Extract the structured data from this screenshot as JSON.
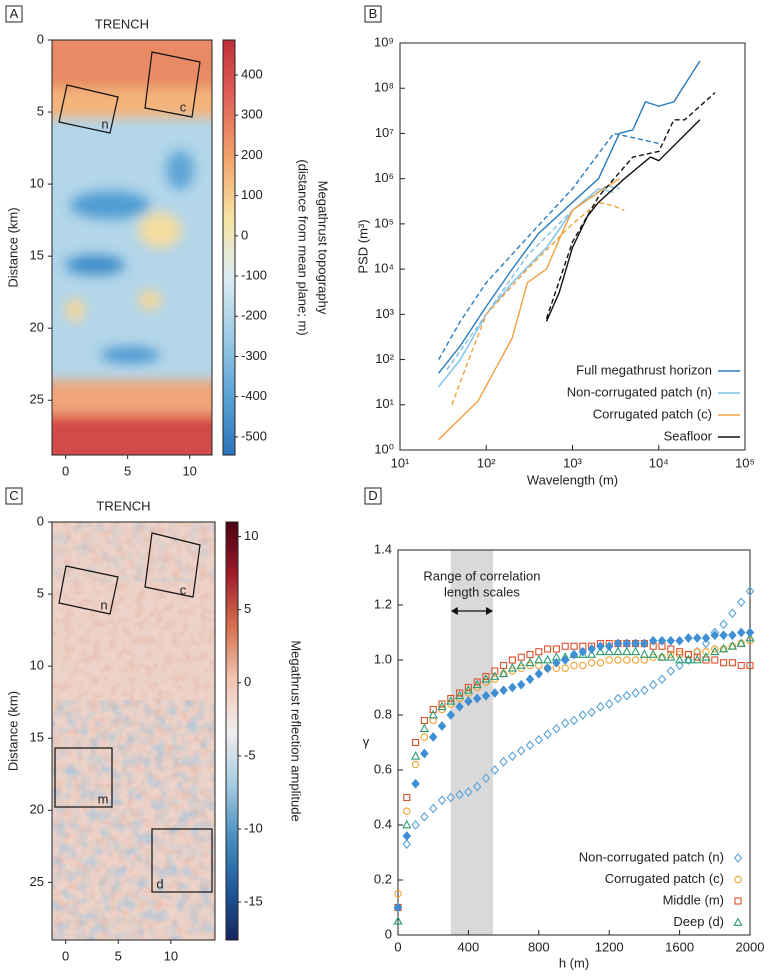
{
  "panel_labels": [
    "A",
    "B",
    "C",
    "D"
  ],
  "chart_data": [
    {
      "type": "heatmap",
      "title": "TRENCH",
      "y_label": "Distance (km)",
      "ylim": [
        0,
        28.8
      ],
      "yticks": [
        0,
        5,
        10,
        15,
        20,
        25
      ],
      "xlim": [
        -1.1,
        11.8
      ],
      "xticks": [
        0,
        5,
        10
      ],
      "colorbar_label": [
        "Megathrust topography",
        "(distance from mean plane; m)"
      ],
      "clim": [
        -545,
        487
      ],
      "cticks": [
        400,
        300,
        200,
        100,
        0,
        -100,
        -200,
        -300,
        -400,
        -500
      ],
      "colormap": [
        "#c0303a",
        "#e2635a",
        "#f2a46a",
        "#f6e3a4",
        "#dcecf2",
        "#9dcbe6",
        "#5aa3d6",
        "#2a74bb"
      ],
      "box_labels": [
        "n",
        "c"
      ]
    },
    {
      "type": "line",
      "log_x": true,
      "log_y": true,
      "x_label": "Wavelength  (m)",
      "y_label": "PSD (m³)",
      "xlim": [
        10,
        100000
      ],
      "ylim": [
        1,
        1000000000
      ],
      "xticks": [
        {
          "value": 10,
          "label": "10¹"
        },
        {
          "value": 100,
          "label": "10²"
        },
        {
          "value": 1000,
          "label": "10³"
        },
        {
          "value": 10000,
          "label": "10⁴"
        },
        {
          "value": 100000,
          "label": "10⁵"
        }
      ],
      "yticks": [
        {
          "value": 1,
          "label": "10⁰"
        },
        {
          "value": 10,
          "label": "10¹"
        },
        {
          "value": 100,
          "label": "10²"
        },
        {
          "value": 1000,
          "label": "10³"
        },
        {
          "value": 10000,
          "label": "10⁴"
        },
        {
          "value": 100000,
          "label": "10⁵"
        },
        {
          "value": 1000000,
          "label": "10⁶"
        },
        {
          "value": 10000000,
          "label": "10⁷"
        },
        {
          "value": 100000000,
          "label": "10⁸"
        },
        {
          "value": 1000000000,
          "label": "10⁹"
        }
      ],
      "series": [
        {
          "name": "Full megathrust horizon",
          "color": "#2a7cc2",
          "x": [
            28,
            50,
            100,
            200,
            400,
            1000,
            2000,
            3500,
            5000,
            7000,
            10000,
            15000,
            30000
          ],
          "values": [
            50,
            200,
            1500,
            10000,
            60000,
            300000,
            1000000,
            10000000,
            12000000,
            50000000,
            40000000,
            50000000,
            400000000
          ],
          "dashed": {
            "x": [
              28,
              50,
              100,
              300,
              1000,
              3000,
              10000
            ],
            "values": [
              100,
              700,
              5000,
              50000,
              600000,
              10000000,
              6000000
            ]
          }
        },
        {
          "name": "Non-corrugated patch (n)",
          "color": "#7cc0e8",
          "x": [
            28,
            50,
            100,
            200,
            500,
            1000,
            2000,
            3000
          ],
          "values": [
            25,
            100,
            1000,
            5000,
            30000,
            200000,
            600000,
            500000
          ],
          "dashed": {
            "x": [
              35,
              100,
              300,
              1000,
              2500,
              3500
            ],
            "values": [
              60,
              1000,
              20000,
              200000,
              700000,
              600000
            ]
          }
        },
        {
          "name": "Corrugated patch (c)",
          "color": "#f0a040",
          "x": [
            28,
            50,
            80,
            120,
            200,
            300,
            500,
            800,
            1000,
            2000,
            3500
          ],
          "values": [
            1.7,
            5,
            12,
            50,
            300,
            5000,
            10000,
            80000,
            200000,
            500000,
            1000000
          ],
          "dashed": {
            "x": [
              40,
              60,
              100,
              300,
              1000,
              2000,
              3000,
              4000
            ],
            "values": [
              10,
              80,
              1000,
              10000,
              100000,
              300000,
              250000,
              200000
            ]
          }
        },
        {
          "name": "Seafloor",
          "color": "#111111",
          "x": [
            500,
            700,
            1000,
            1500,
            2000,
            4000,
            8000,
            10000,
            30000
          ],
          "values": [
            700,
            3000,
            30000,
            150000,
            300000,
            1000000,
            3000000,
            2500000,
            20000000
          ],
          "dashed": {
            "x": [
              500,
              1000,
              2000,
              5000,
              10000,
              15000,
              20000,
              45000
            ],
            "values": [
              800,
              40000,
              400000,
              3000000,
              4000000,
              20000000,
              20000000,
              80000000
            ]
          }
        }
      ]
    },
    {
      "type": "heatmap",
      "title": "TRENCH",
      "y_label": "Distance (km)",
      "ylim": [
        0,
        29
      ],
      "yticks": [
        0,
        5,
        10,
        15,
        20,
        25
      ],
      "xlim": [
        -1.3,
        14.2
      ],
      "xticks": [
        0,
        5,
        10
      ],
      "colorbar_label": [
        "Megathrust reflection amplitude"
      ],
      "clim": [
        -17.6,
        11
      ],
      "cticks": [
        10,
        5,
        0,
        -5,
        -10,
        -15
      ],
      "colormap": [
        "#4a0010",
        "#a01c2c",
        "#d8704e",
        "#f0c4b0",
        "#f2eeee",
        "#a8cce0",
        "#4b92c2",
        "#1f5a9c",
        "#1a2460"
      ],
      "box_labels": [
        "n",
        "c",
        "m",
        "d"
      ]
    },
    {
      "type": "scatter",
      "x_label": "h (m)",
      "y_label": "γ",
      "xlim": [
        0,
        2000
      ],
      "ylim": [
        0,
        1.4
      ],
      "xticks": [
        0,
        400,
        800,
        1200,
        1600,
        2000
      ],
      "yticks": [
        0,
        0.2,
        0.4,
        0.6,
        0.8,
        {
          "value": 1,
          "label": "1.0"
        },
        1.2,
        1.4
      ],
      "band": [
        300,
        540
      ],
      "annotation": [
        "Range of correlation",
        "length scales"
      ],
      "x": [
        0,
        50,
        100,
        150,
        200,
        250,
        300,
        350,
        400,
        450,
        500,
        550,
        600,
        650,
        700,
        750,
        800,
        850,
        900,
        950,
        1000,
        1050,
        1100,
        1150,
        1200,
        1250,
        1300,
        1350,
        1400,
        1450,
        1500,
        1550,
        1600,
        1650,
        1700,
        1750,
        1800,
        1850,
        1900,
        1950,
        2000
      ],
      "series": [
        {
          "name": "Non-corrugated patch (n)",
          "color": "#5ba3d9",
          "marker": "diamond",
          "values": [
            0.1,
            0.33,
            0.4,
            0.43,
            0.46,
            0.49,
            0.5,
            0.51,
            0.52,
            0.54,
            0.57,
            0.6,
            0.63,
            0.65,
            0.67,
            0.69,
            0.71,
            0.73,
            0.75,
            0.77,
            0.78,
            0.8,
            0.81,
            0.83,
            0.84,
            0.86,
            0.87,
            0.88,
            0.89,
            0.91,
            0.93,
            0.96,
            0.98,
            1.0,
            1.03,
            1.06,
            1.1,
            1.13,
            1.17,
            1.21,
            1.25
          ]
        },
        {
          "name": "Corrugated patch (c)",
          "color": "#f0a030",
          "marker": "circle",
          "values": [
            0.15,
            0.45,
            0.62,
            0.72,
            0.78,
            0.82,
            0.84,
            0.86,
            0.88,
            0.9,
            0.92,
            0.93,
            0.95,
            0.96,
            0.97,
            0.98,
            0.98,
            0.97,
            0.97,
            0.97,
            0.98,
            0.98,
            0.99,
            0.99,
            1.0,
            1.0,
            1.0,
            1.0,
            1.0,
            1.01,
            1.01,
            1.02,
            1.02,
            1.02,
            1.03,
            1.03,
            1.04,
            1.04,
            1.05,
            1.06,
            1.07
          ]
        },
        {
          "name": "Middle (m)",
          "color": "#e0502a",
          "marker": "square",
          "values": [
            0.1,
            0.5,
            0.7,
            0.78,
            0.82,
            0.84,
            0.86,
            0.88,
            0.9,
            0.92,
            0.94,
            0.96,
            0.98,
            1.0,
            1.01,
            1.02,
            1.03,
            1.04,
            1.04,
            1.05,
            1.05,
            1.05,
            1.05,
            1.06,
            1.06,
            1.06,
            1.06,
            1.06,
            1.06,
            1.05,
            1.05,
            1.04,
            1.03,
            1.02,
            1.01,
            1.0,
            1.0,
            0.99,
            0.99,
            0.98,
            0.98
          ]
        },
        {
          "name": "Deep (d)",
          "color": "#2a9d6e",
          "marker": "triangle",
          "values": [
            0.05,
            0.4,
            0.65,
            0.75,
            0.8,
            0.83,
            0.85,
            0.87,
            0.89,
            0.91,
            0.93,
            0.94,
            0.95,
            0.97,
            0.98,
            0.99,
            1.0,
            1.0,
            1.01,
            1.01,
            1.02,
            1.02,
            1.02,
            1.03,
            1.03,
            1.03,
            1.03,
            1.03,
            1.02,
            1.02,
            1.01,
            1.01,
            1.0,
            1.0,
            1.0,
            1.01,
            1.03,
            1.04,
            1.05,
            1.06,
            1.08
          ]
        },
        {
          "color": "#3f8fd6",
          "marker": "filled-diamond",
          "values": [
            0.1,
            0.36,
            0.55,
            0.66,
            0.72,
            0.76,
            0.8,
            0.83,
            0.85,
            0.86,
            0.87,
            0.88,
            0.89,
            0.9,
            0.91,
            0.93,
            0.95,
            0.97,
            0.99,
            1.0,
            1.02,
            1.03,
            1.04,
            1.05,
            1.05,
            1.06,
            1.06,
            1.06,
            1.06,
            1.07,
            1.07,
            1.07,
            1.07,
            1.08,
            1.08,
            1.08,
            1.09,
            1.09,
            1.09,
            1.1,
            1.1
          ]
        }
      ]
    }
  ]
}
